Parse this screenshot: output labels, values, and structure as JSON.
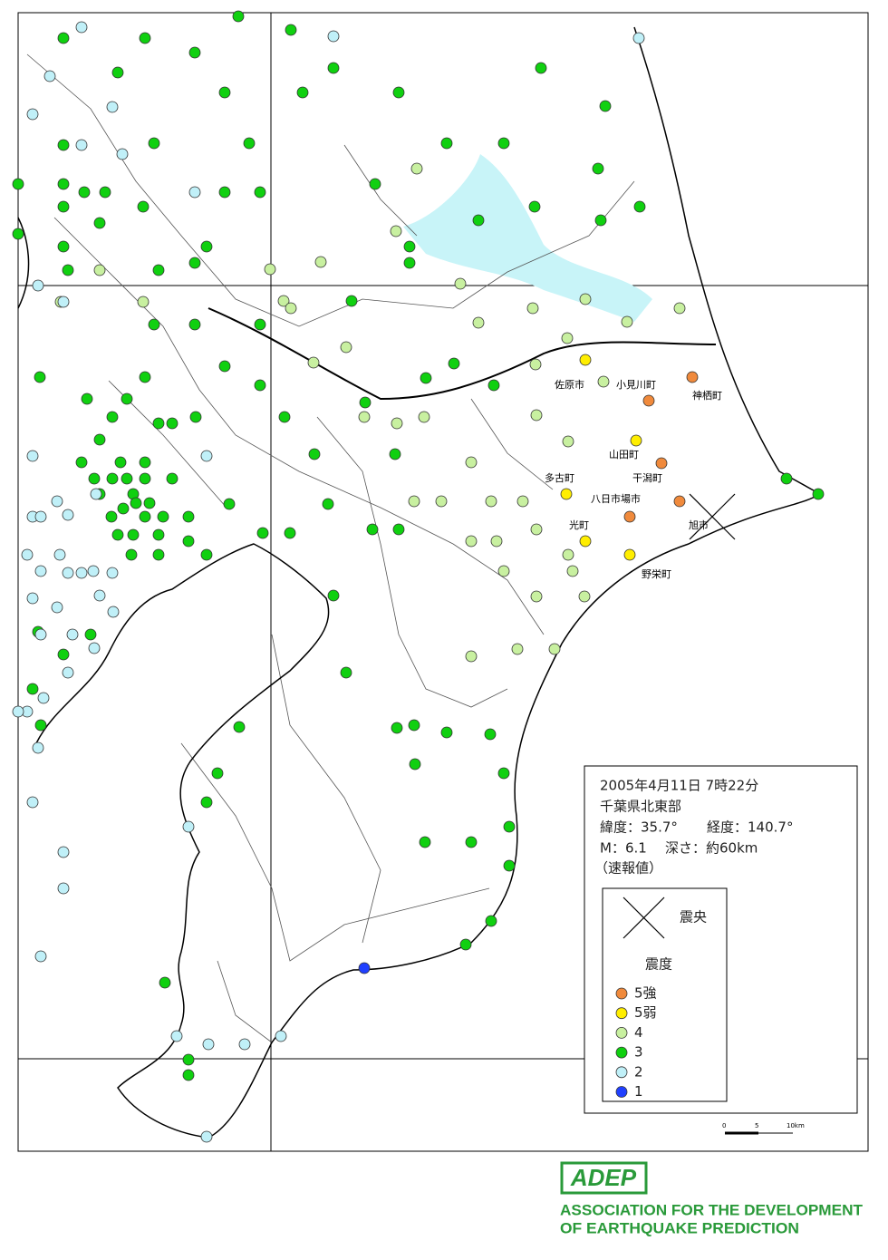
{
  "info": {
    "datetime": "2005年4月11日 7時22分",
    "region": "千葉県北東部",
    "latitude": "緯度：35.7°",
    "longitude": "経度：140.7°",
    "magnitude": "M：6.1",
    "depth": "深さ：約60km",
    "note": "（速報値）"
  },
  "legend": {
    "epicenter": "震央",
    "intensity_title": "震度",
    "items": [
      {
        "label": "5強",
        "color": "#f08a3c"
      },
      {
        "label": "5弱",
        "color": "#ffee00"
      },
      {
        "label": "4",
        "color": "#c8f0a0"
      },
      {
        "label": "3",
        "color": "#10d010"
      },
      {
        "label": "2",
        "color": "#c0f0f8"
      },
      {
        "label": "1",
        "color": "#2040ff"
      }
    ]
  },
  "places": [
    "佐原市",
    "小見川町",
    "神栖町",
    "山田町",
    "多古町",
    "干潟町",
    "八日市場市",
    "光町",
    "旭市",
    "野栄町"
  ],
  "scale": {
    "labels": [
      "0",
      "5",
      "10km"
    ]
  },
  "logo": {
    "name": "ADEP",
    "line1": "ASSOCIATION FOR THE DEVELOPMENT",
    "line2": "OF EARTHQUAKE PREDICTION"
  }
}
